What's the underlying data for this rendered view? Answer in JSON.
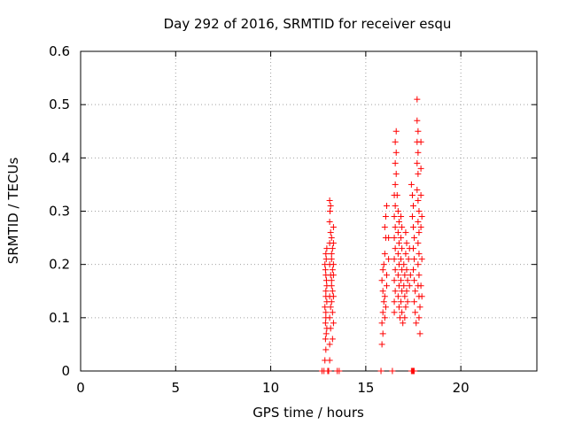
{
  "chart_data": {
    "type": "scatter",
    "title": "Day 292 of 2016, SRMTID for receiver esqu",
    "xlabel": "GPS time / hours",
    "ylabel": "SRMTID / TECUs",
    "xlim": [
      0,
      24
    ],
    "ylim": [
      0,
      0.6
    ],
    "x_ticks": [
      0,
      5,
      10,
      15,
      20
    ],
    "y_ticks": [
      0,
      0.1,
      0.2,
      0.3,
      0.4,
      0.5,
      0.6
    ],
    "grid": true,
    "marker": "+",
    "series": [
      {
        "color": "#ff0000",
        "points": [
          [
            12.7,
            0.0
          ],
          [
            12.8,
            0.0
          ],
          [
            13.0,
            0.0
          ],
          [
            13.5,
            0.0
          ],
          [
            13.6,
            0.0
          ],
          [
            12.85,
            0.02
          ],
          [
            12.9,
            0.04
          ],
          [
            12.88,
            0.06
          ],
          [
            12.95,
            0.08
          ],
          [
            12.9,
            0.1
          ],
          [
            12.85,
            0.12
          ],
          [
            12.9,
            0.14
          ],
          [
            12.95,
            0.16
          ],
          [
            12.9,
            0.18
          ],
          [
            12.85,
            0.2
          ],
          [
            12.9,
            0.22
          ],
          [
            12.95,
            0.23
          ],
          [
            12.92,
            0.21
          ],
          [
            12.88,
            0.19
          ],
          [
            12.93,
            0.17
          ],
          [
            12.9,
            0.15
          ],
          [
            12.95,
            0.13
          ],
          [
            12.9,
            0.11
          ],
          [
            12.88,
            0.09
          ],
          [
            12.92,
            0.07
          ],
          [
            13.05,
            0.0
          ],
          [
            13.1,
            0.02
          ],
          [
            13.1,
            0.05
          ],
          [
            13.15,
            0.08
          ],
          [
            13.1,
            0.1
          ],
          [
            13.15,
            0.12
          ],
          [
            13.1,
            0.14
          ],
          [
            13.2,
            0.16
          ],
          [
            13.15,
            0.18
          ],
          [
            13.1,
            0.2
          ],
          [
            13.2,
            0.22
          ],
          [
            13.1,
            0.24
          ],
          [
            13.15,
            0.26
          ],
          [
            13.1,
            0.28
          ],
          [
            13.12,
            0.3
          ],
          [
            13.1,
            0.32
          ],
          [
            13.15,
            0.31
          ],
          [
            13.2,
            0.25
          ],
          [
            13.25,
            0.23
          ],
          [
            13.2,
            0.21
          ],
          [
            13.25,
            0.19
          ],
          [
            13.2,
            0.17
          ],
          [
            13.25,
            0.15
          ],
          [
            13.2,
            0.13
          ],
          [
            13.25,
            0.11
          ],
          [
            13.3,
            0.24
          ],
          [
            13.3,
            0.27
          ],
          [
            13.3,
            0.2
          ],
          [
            13.3,
            0.18
          ],
          [
            13.3,
            0.14
          ],
          [
            13.3,
            0.09
          ],
          [
            13.25,
            0.06
          ],
          [
            15.8,
            0.0
          ],
          [
            15.85,
            0.05
          ],
          [
            15.9,
            0.07
          ],
          [
            15.85,
            0.09
          ],
          [
            15.9,
            0.11
          ],
          [
            15.95,
            0.13
          ],
          [
            15.9,
            0.15
          ],
          [
            15.85,
            0.17
          ],
          [
            15.9,
            0.19
          ],
          [
            15.95,
            0.2
          ],
          [
            16.0,
            0.22
          ],
          [
            16.05,
            0.25
          ],
          [
            16.0,
            0.27
          ],
          [
            16.05,
            0.29
          ],
          [
            16.1,
            0.31
          ],
          [
            16.0,
            0.14
          ],
          [
            16.05,
            0.12
          ],
          [
            16.1,
            0.16
          ],
          [
            16.1,
            0.18
          ],
          [
            16.0,
            0.1
          ],
          [
            16.2,
            0.25
          ],
          [
            16.2,
            0.21
          ],
          [
            16.4,
            0.0
          ],
          [
            16.5,
            0.11
          ],
          [
            16.5,
            0.13
          ],
          [
            16.55,
            0.15
          ],
          [
            16.5,
            0.17
          ],
          [
            16.55,
            0.19
          ],
          [
            16.5,
            0.21
          ],
          [
            16.55,
            0.23
          ],
          [
            16.5,
            0.25
          ],
          [
            16.55,
            0.27
          ],
          [
            16.5,
            0.29
          ],
          [
            16.55,
            0.31
          ],
          [
            16.5,
            0.33
          ],
          [
            16.55,
            0.35
          ],
          [
            16.6,
            0.37
          ],
          [
            16.55,
            0.39
          ],
          [
            16.6,
            0.41
          ],
          [
            16.55,
            0.43
          ],
          [
            16.6,
            0.45
          ],
          [
            16.65,
            0.33
          ],
          [
            16.7,
            0.3
          ],
          [
            16.75,
            0.28
          ],
          [
            16.7,
            0.26
          ],
          [
            16.75,
            0.24
          ],
          [
            16.7,
            0.22
          ],
          [
            16.75,
            0.2
          ],
          [
            16.7,
            0.18
          ],
          [
            16.75,
            0.16
          ],
          [
            16.7,
            0.14
          ],
          [
            16.75,
            0.12
          ],
          [
            16.8,
            0.1
          ],
          [
            16.85,
            0.29
          ],
          [
            16.9,
            0.27
          ],
          [
            16.85,
            0.25
          ],
          [
            16.9,
            0.23
          ],
          [
            16.85,
            0.21
          ],
          [
            16.9,
            0.19
          ],
          [
            16.85,
            0.17
          ],
          [
            16.9,
            0.15
          ],
          [
            16.85,
            0.13
          ],
          [
            16.9,
            0.11
          ],
          [
            16.95,
            0.09
          ],
          [
            17.0,
            0.2
          ],
          [
            17.05,
            0.18
          ],
          [
            17.0,
            0.16
          ],
          [
            17.05,
            0.14
          ],
          [
            17.1,
            0.12
          ],
          [
            17.05,
            0.1
          ],
          [
            17.1,
            0.22
          ],
          [
            17.15,
            0.24
          ],
          [
            17.1,
            0.26
          ],
          [
            17.15,
            0.19
          ],
          [
            17.2,
            0.17
          ],
          [
            17.15,
            0.15
          ],
          [
            17.2,
            0.13
          ],
          [
            17.25,
            0.21
          ],
          [
            17.3,
            0.23
          ],
          [
            17.35,
            0.18
          ],
          [
            17.3,
            0.16
          ],
          [
            17.4,
            0.0
          ],
          [
            17.45,
            0.0
          ],
          [
            17.5,
            0.0
          ],
          [
            17.55,
            0.0
          ],
          [
            17.4,
            0.35
          ],
          [
            17.45,
            0.33
          ],
          [
            17.5,
            0.31
          ],
          [
            17.45,
            0.29
          ],
          [
            17.5,
            0.27
          ],
          [
            17.55,
            0.25
          ],
          [
            17.5,
            0.23
          ],
          [
            17.55,
            0.21
          ],
          [
            17.5,
            0.19
          ],
          [
            17.55,
            0.17
          ],
          [
            17.6,
            0.15
          ],
          [
            17.55,
            0.13
          ],
          [
            17.6,
            0.11
          ],
          [
            17.65,
            0.09
          ],
          [
            17.7,
            0.51
          ],
          [
            17.7,
            0.47
          ],
          [
            17.75,
            0.45
          ],
          [
            17.7,
            0.43
          ],
          [
            17.75,
            0.41
          ],
          [
            17.7,
            0.39
          ],
          [
            17.75,
            0.37
          ],
          [
            17.7,
            0.34
          ],
          [
            17.75,
            0.32
          ],
          [
            17.8,
            0.3
          ],
          [
            17.75,
            0.28
          ],
          [
            17.8,
            0.26
          ],
          [
            17.75,
            0.24
          ],
          [
            17.8,
            0.22
          ],
          [
            17.75,
            0.2
          ],
          [
            17.8,
            0.18
          ],
          [
            17.75,
            0.16
          ],
          [
            17.8,
            0.14
          ],
          [
            17.85,
            0.12
          ],
          [
            17.8,
            0.1
          ],
          [
            17.85,
            0.07
          ],
          [
            17.9,
            0.43
          ],
          [
            17.9,
            0.38
          ],
          [
            17.9,
            0.33
          ],
          [
            17.95,
            0.29
          ],
          [
            17.9,
            0.27
          ],
          [
            17.95,
            0.21
          ],
          [
            17.9,
            0.16
          ],
          [
            17.95,
            0.14
          ]
        ]
      }
    ]
  }
}
